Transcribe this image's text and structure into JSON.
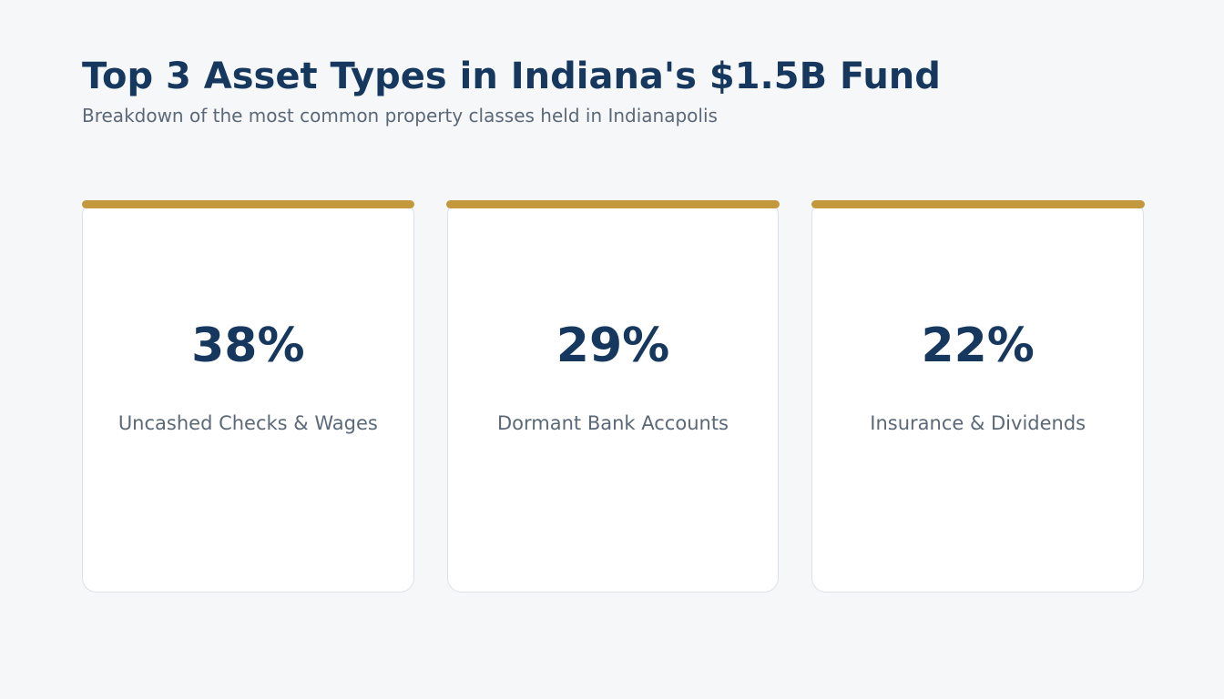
{
  "header": {
    "title": "Top 3 Asset Types in Indiana's $1.5B Fund",
    "subtitle": "Breakdown of the most common property classes held in Indianapolis"
  },
  "cards": [
    {
      "value": "38%",
      "label": "Uncashed Checks & Wages"
    },
    {
      "value": "29%",
      "label": "Dormant Bank Accounts"
    },
    {
      "value": "22%",
      "label": "Insurance & Dividends"
    }
  ],
  "colors": {
    "background": "#f6f7f9",
    "title": "#17385e",
    "muted_text": "#5a6878",
    "accent": "#c4993e",
    "card_border": "#dde1e7"
  }
}
